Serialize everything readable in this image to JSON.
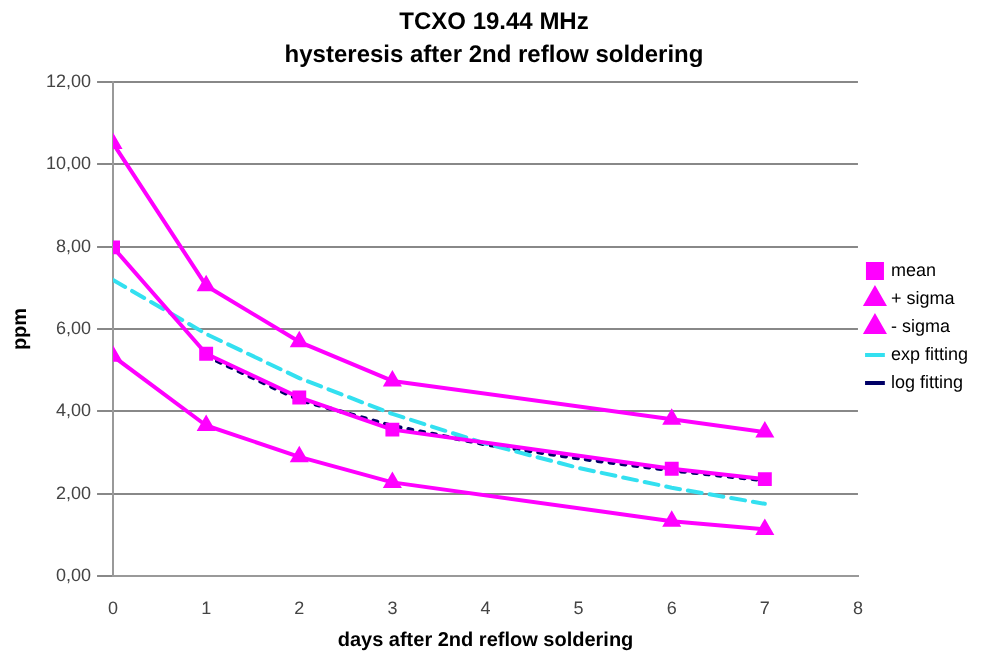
{
  "chart_data": {
    "type": "line",
    "title": "TCXO 19.44 MHz",
    "subtitle": "hysteresis after 2nd reflow soldering",
    "xlabel": "days after 2nd reflow soldering",
    "ylabel": "ppm",
    "xlim": [
      0,
      8
    ],
    "xticks": [
      0,
      1,
      2,
      3,
      4,
      5,
      6,
      7,
      8
    ],
    "ylim": [
      0,
      12
    ],
    "yticks": [
      {
        "value": 0,
        "label": "0,00"
      },
      {
        "value": 2,
        "label": "2,00"
      },
      {
        "value": 4,
        "label": "4,00"
      },
      {
        "value": 6,
        "label": "6,00"
      },
      {
        "value": 8,
        "label": "8,00"
      },
      {
        "value": 10,
        "label": "10,00"
      },
      {
        "value": 12,
        "label": "12,00"
      }
    ],
    "grid": "y",
    "legend": "right",
    "line_style": "solid",
    "marker": "none",
    "series": [
      {
        "name": "mean",
        "color": "#ff00ff",
        "marker": "square",
        "x": [
          0,
          1,
          2,
          3,
          6,
          7
        ],
        "values": [
          7.98,
          5.4,
          4.34,
          3.56,
          2.61,
          2.36
        ]
      },
      {
        "name": "+ sigma",
        "color": "#ff00ff",
        "marker": "triangle",
        "x": [
          0,
          1,
          2,
          3,
          6,
          7
        ],
        "values": [
          10.5,
          7.05,
          5.69,
          4.74,
          3.81,
          3.5
        ]
      },
      {
        "name": "- sigma",
        "color": "#ff00ff",
        "marker": "triangle",
        "x": [
          0,
          1,
          2,
          3,
          6,
          7
        ],
        "values": [
          5.34,
          3.66,
          2.9,
          2.28,
          1.34,
          1.14
        ]
      },
      {
        "name": "exp fitting",
        "color": "#33e0f0",
        "line_style": "dashed",
        "x": [
          0,
          1,
          2,
          3,
          4,
          5,
          6,
          7
        ],
        "values": [
          7.19,
          5.88,
          4.81,
          3.94,
          3.22,
          2.63,
          2.15,
          1.76
        ]
      },
      {
        "name": "log fitting",
        "color": "#000066",
        "line_style": "dotted",
        "x": [
          1,
          2,
          3,
          4,
          5,
          6,
          7
        ],
        "values": [
          5.35,
          4.28,
          3.65,
          3.2,
          2.86,
          2.57,
          2.33
        ]
      }
    ]
  }
}
